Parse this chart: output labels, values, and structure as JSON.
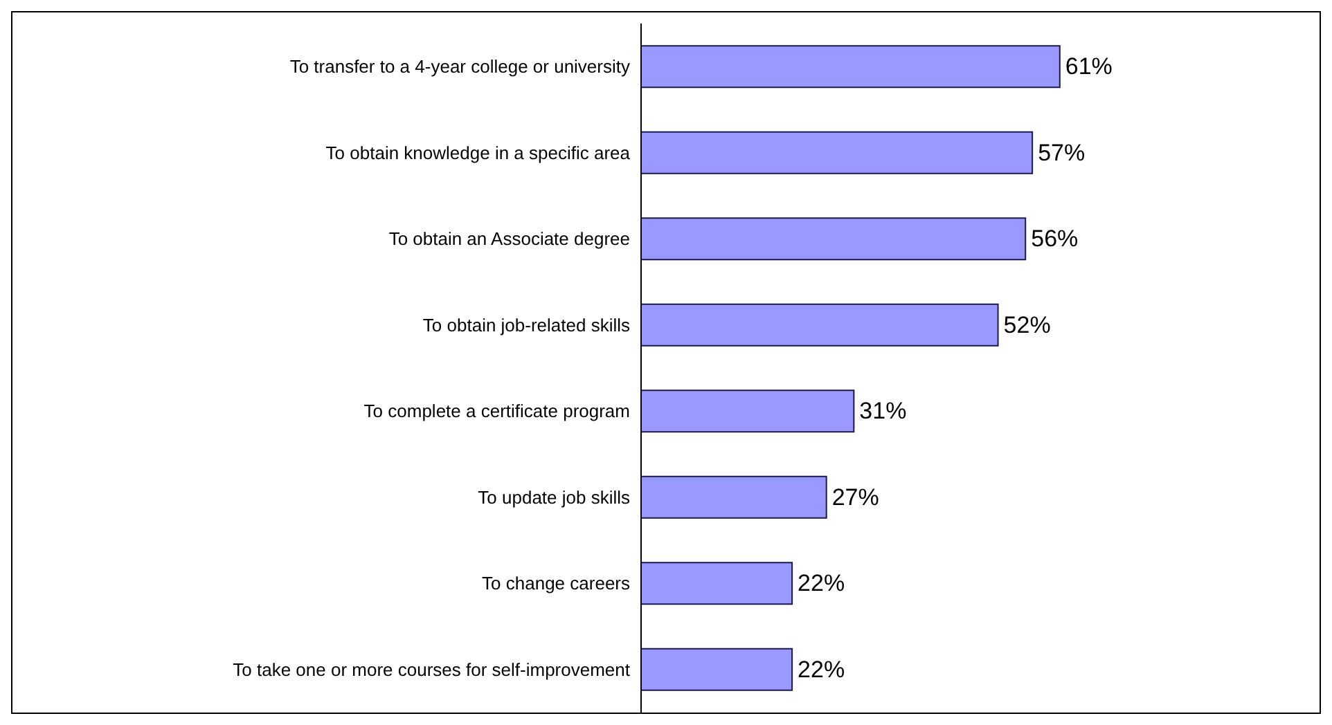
{
  "chart_data": {
    "type": "bar",
    "orientation": "horizontal",
    "categories": [
      "To transfer to a 4-year college or university",
      "To obtain knowledge in a specific area",
      "To obtain an Associate degree",
      "To obtain job-related skills",
      "To complete a certificate program",
      "To update job skills ",
      "To change careers",
      "To take one or more courses for self-improvement"
    ],
    "values": [
      61,
      57,
      56,
      52,
      31,
      27,
      22,
      22
    ],
    "value_labels": [
      "61%",
      "57%",
      "56%",
      "52%",
      "31%",
      "27%",
      "22%",
      "22%"
    ],
    "color": "#9999ff",
    "grid": false,
    "legend": false
  }
}
